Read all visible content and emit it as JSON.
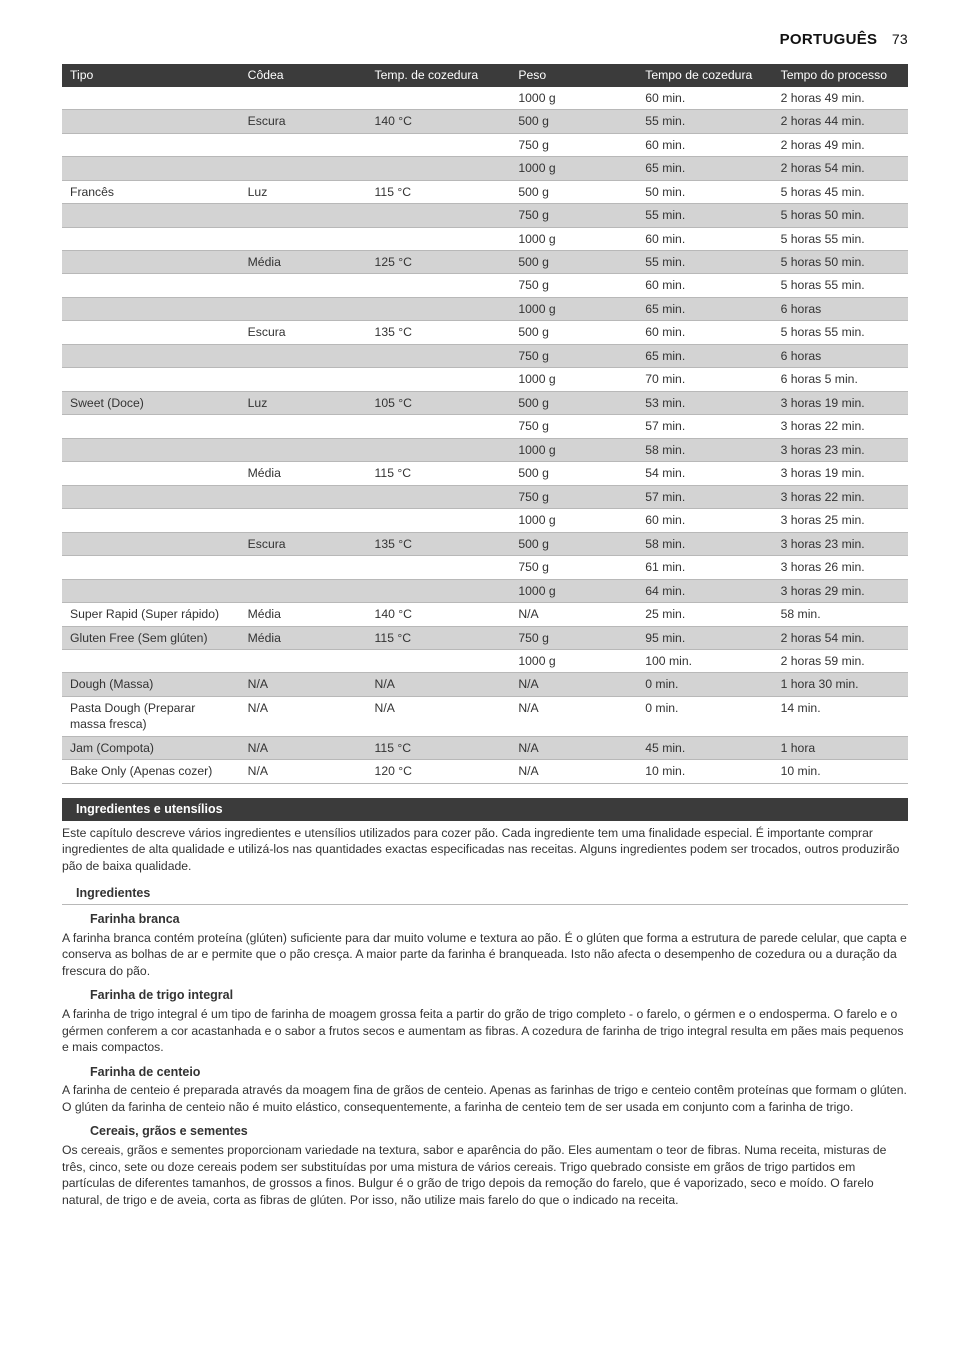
{
  "header": {
    "title": "PORTUGUÊS",
    "page": "73"
  },
  "table": {
    "columns": [
      "Tipo",
      "Côdea",
      "Temp. de cozedura",
      "Peso",
      "Tempo de cozedura",
      "Tempo do processo"
    ],
    "col_classes": [
      "col-tipo",
      "col-codea",
      "col-temp",
      "col-peso",
      "col-tcoz",
      "col-tproc"
    ],
    "rows": [
      {
        "alt": false,
        "cells": [
          "",
          "",
          "",
          "1000 g",
          "60 min.",
          "2 horas 49 min."
        ]
      },
      {
        "alt": true,
        "cells": [
          "",
          "Escura",
          "140 °C",
          "500 g",
          "55 min.",
          "2 horas 44 min."
        ]
      },
      {
        "alt": false,
        "cells": [
          "",
          "",
          "",
          "750 g",
          "60 min.",
          "2 horas 49 min."
        ]
      },
      {
        "alt": true,
        "cells": [
          "",
          "",
          "",
          "1000 g",
          "65 min.",
          "2 horas 54 min."
        ]
      },
      {
        "alt": false,
        "cells": [
          "Francês",
          "Luz",
          "115 °C",
          "500 g",
          "50 min.",
          "5 horas 45 min."
        ]
      },
      {
        "alt": true,
        "cells": [
          "",
          "",
          "",
          "750 g",
          "55 min.",
          "5 horas 50 min."
        ]
      },
      {
        "alt": false,
        "cells": [
          "",
          "",
          "",
          "1000 g",
          "60 min.",
          "5 horas 55 min."
        ]
      },
      {
        "alt": true,
        "cells": [
          "",
          "Média",
          "125 °C",
          "500 g",
          "55 min.",
          "5 horas 50 min."
        ]
      },
      {
        "alt": false,
        "cells": [
          "",
          "",
          "",
          "750 g",
          "60 min.",
          "5 horas 55 min."
        ]
      },
      {
        "alt": true,
        "cells": [
          "",
          "",
          "",
          "1000 g",
          "65 min.",
          "6 horas"
        ]
      },
      {
        "alt": false,
        "cells": [
          "",
          "Escura",
          "135 °C",
          "500 g",
          "60 min.",
          "5 horas 55 min."
        ]
      },
      {
        "alt": true,
        "cells": [
          "",
          "",
          "",
          "750 g",
          "65 min.",
          "6 horas"
        ]
      },
      {
        "alt": false,
        "cells": [
          "",
          "",
          "",
          "1000 g",
          "70 min.",
          "6 horas 5 min."
        ]
      },
      {
        "alt": true,
        "cells": [
          "Sweet (Doce)",
          "Luz",
          "105 °C",
          "500 g",
          "53 min.",
          "3 horas 19 min."
        ]
      },
      {
        "alt": false,
        "cells": [
          "",
          "",
          "",
          "750 g",
          "57 min.",
          "3 horas 22 min."
        ]
      },
      {
        "alt": true,
        "cells": [
          "",
          "",
          "",
          "1000 g",
          "58 min.",
          "3 horas 23 min."
        ]
      },
      {
        "alt": false,
        "cells": [
          "",
          "Média",
          "115 °C",
          "500 g",
          "54 min.",
          "3 horas 19 min."
        ]
      },
      {
        "alt": true,
        "cells": [
          "",
          "",
          "",
          "750 g",
          "57 min.",
          "3 horas 22 min."
        ]
      },
      {
        "alt": false,
        "cells": [
          "",
          "",
          "",
          "1000 g",
          "60 min.",
          "3 horas 25 min."
        ]
      },
      {
        "alt": true,
        "cells": [
          "",
          "Escura",
          "135 °C",
          "500 g",
          "58 min.",
          "3 horas 23 min."
        ]
      },
      {
        "alt": false,
        "cells": [
          "",
          "",
          "",
          "750 g",
          "61 min.",
          "3 horas 26 min."
        ]
      },
      {
        "alt": true,
        "cells": [
          "",
          "",
          "",
          "1000 g",
          "64 min.",
          "3 horas 29 min."
        ]
      },
      {
        "alt": false,
        "cells": [
          "Super Rapid (Super rápido)",
          "Média",
          "140 °C",
          "N/A",
          "25 min.",
          "58 min."
        ]
      },
      {
        "alt": true,
        "cells": [
          "Gluten Free (Sem glúten)",
          "Média",
          "115 °C",
          "750 g",
          "95 min.",
          "2 horas 54 min."
        ]
      },
      {
        "alt": false,
        "cells": [
          "",
          "",
          "",
          "1000 g",
          "100 min.",
          "2 horas 59 min."
        ]
      },
      {
        "alt": true,
        "cells": [
          "Dough (Massa)",
          "N/A",
          "N/A",
          "N/A",
          "0 min.",
          "1 hora 30 min."
        ]
      },
      {
        "alt": false,
        "cells": [
          "Pasta Dough (Preparar massa fresca)",
          "N/A",
          "N/A",
          "N/A",
          "0 min.",
          "14 min."
        ]
      },
      {
        "alt": true,
        "cells": [
          "Jam (Compota)",
          "N/A",
          "115 °C",
          "N/A",
          "45 min.",
          "1 hora"
        ]
      },
      {
        "alt": false,
        "cells": [
          "Bake Only (Apenas cozer)",
          "N/A",
          "120 °C",
          "N/A",
          "10 min.",
          "10 min."
        ]
      }
    ]
  },
  "sections": {
    "bar1": "Ingredientes e utensílios",
    "p1": "Este capítulo descreve vários ingredientes e utensílios utilizados para cozer pão. Cada ingrediente tem uma finalidade especial. É importante comprar ingredientes de alta qualidade e utilizá-los nas quantidades exactas especificadas nas receitas. Alguns ingredientes podem ser trocados, outros produzirão pão de baixa qualidade.",
    "sub1": "Ingredientes",
    "h1": "Farinha branca",
    "t1": "A farinha branca contém proteína (glúten) suficiente para dar muito volume e textura ao pão. É o glúten que forma a estrutura de parede celular, que capta e conserva as bolhas de ar e permite que o pão cresça. A maior parte da farinha é branqueada. Isto não afecta o desempenho de cozedura ou a duração da frescura do pão.",
    "h2": "Farinha de trigo integral",
    "t2": "A farinha de trigo integral é um tipo de farinha de moagem grossa feita a partir do grão de trigo completo - o farelo, o gérmen e o endosperma. O farelo e o gérmen conferem a cor acastanhada e o sabor a frutos secos e aumentam as fibras. A cozedura de farinha de trigo integral resulta em pães mais pequenos e mais compactos.",
    "h3": "Farinha de centeio",
    "t3": "A farinha de centeio é preparada através da moagem fina de grãos de centeio. Apenas as farinhas de trigo e centeio contêm proteínas que formam o glúten. O glúten da farinha de centeio não é muito elástico, consequentemente, a farinha de centeio tem de ser usada em conjunto com a farinha de trigo.",
    "h4": "Cereais, grãos e sementes",
    "t4": "Os cereais, grãos e sementes proporcionam variedade na textura, sabor e aparência do pão. Eles aumentam o teor de fibras. Numa receita, misturas de três, cinco, sete ou doze cereais podem ser substituídas por uma mistura de vários cereais. Trigo quebrado consiste em grãos de trigo partidos em partículas de diferentes tamanhos, de grossos a finos. Bulgur é o grão de trigo depois da remoção do farelo, que é vaporizado, seco e moído. O farelo natural, de trigo e de aveia, corta as fibras de glúten. Por isso, não utilize mais farelo do que o indicado na receita."
  }
}
